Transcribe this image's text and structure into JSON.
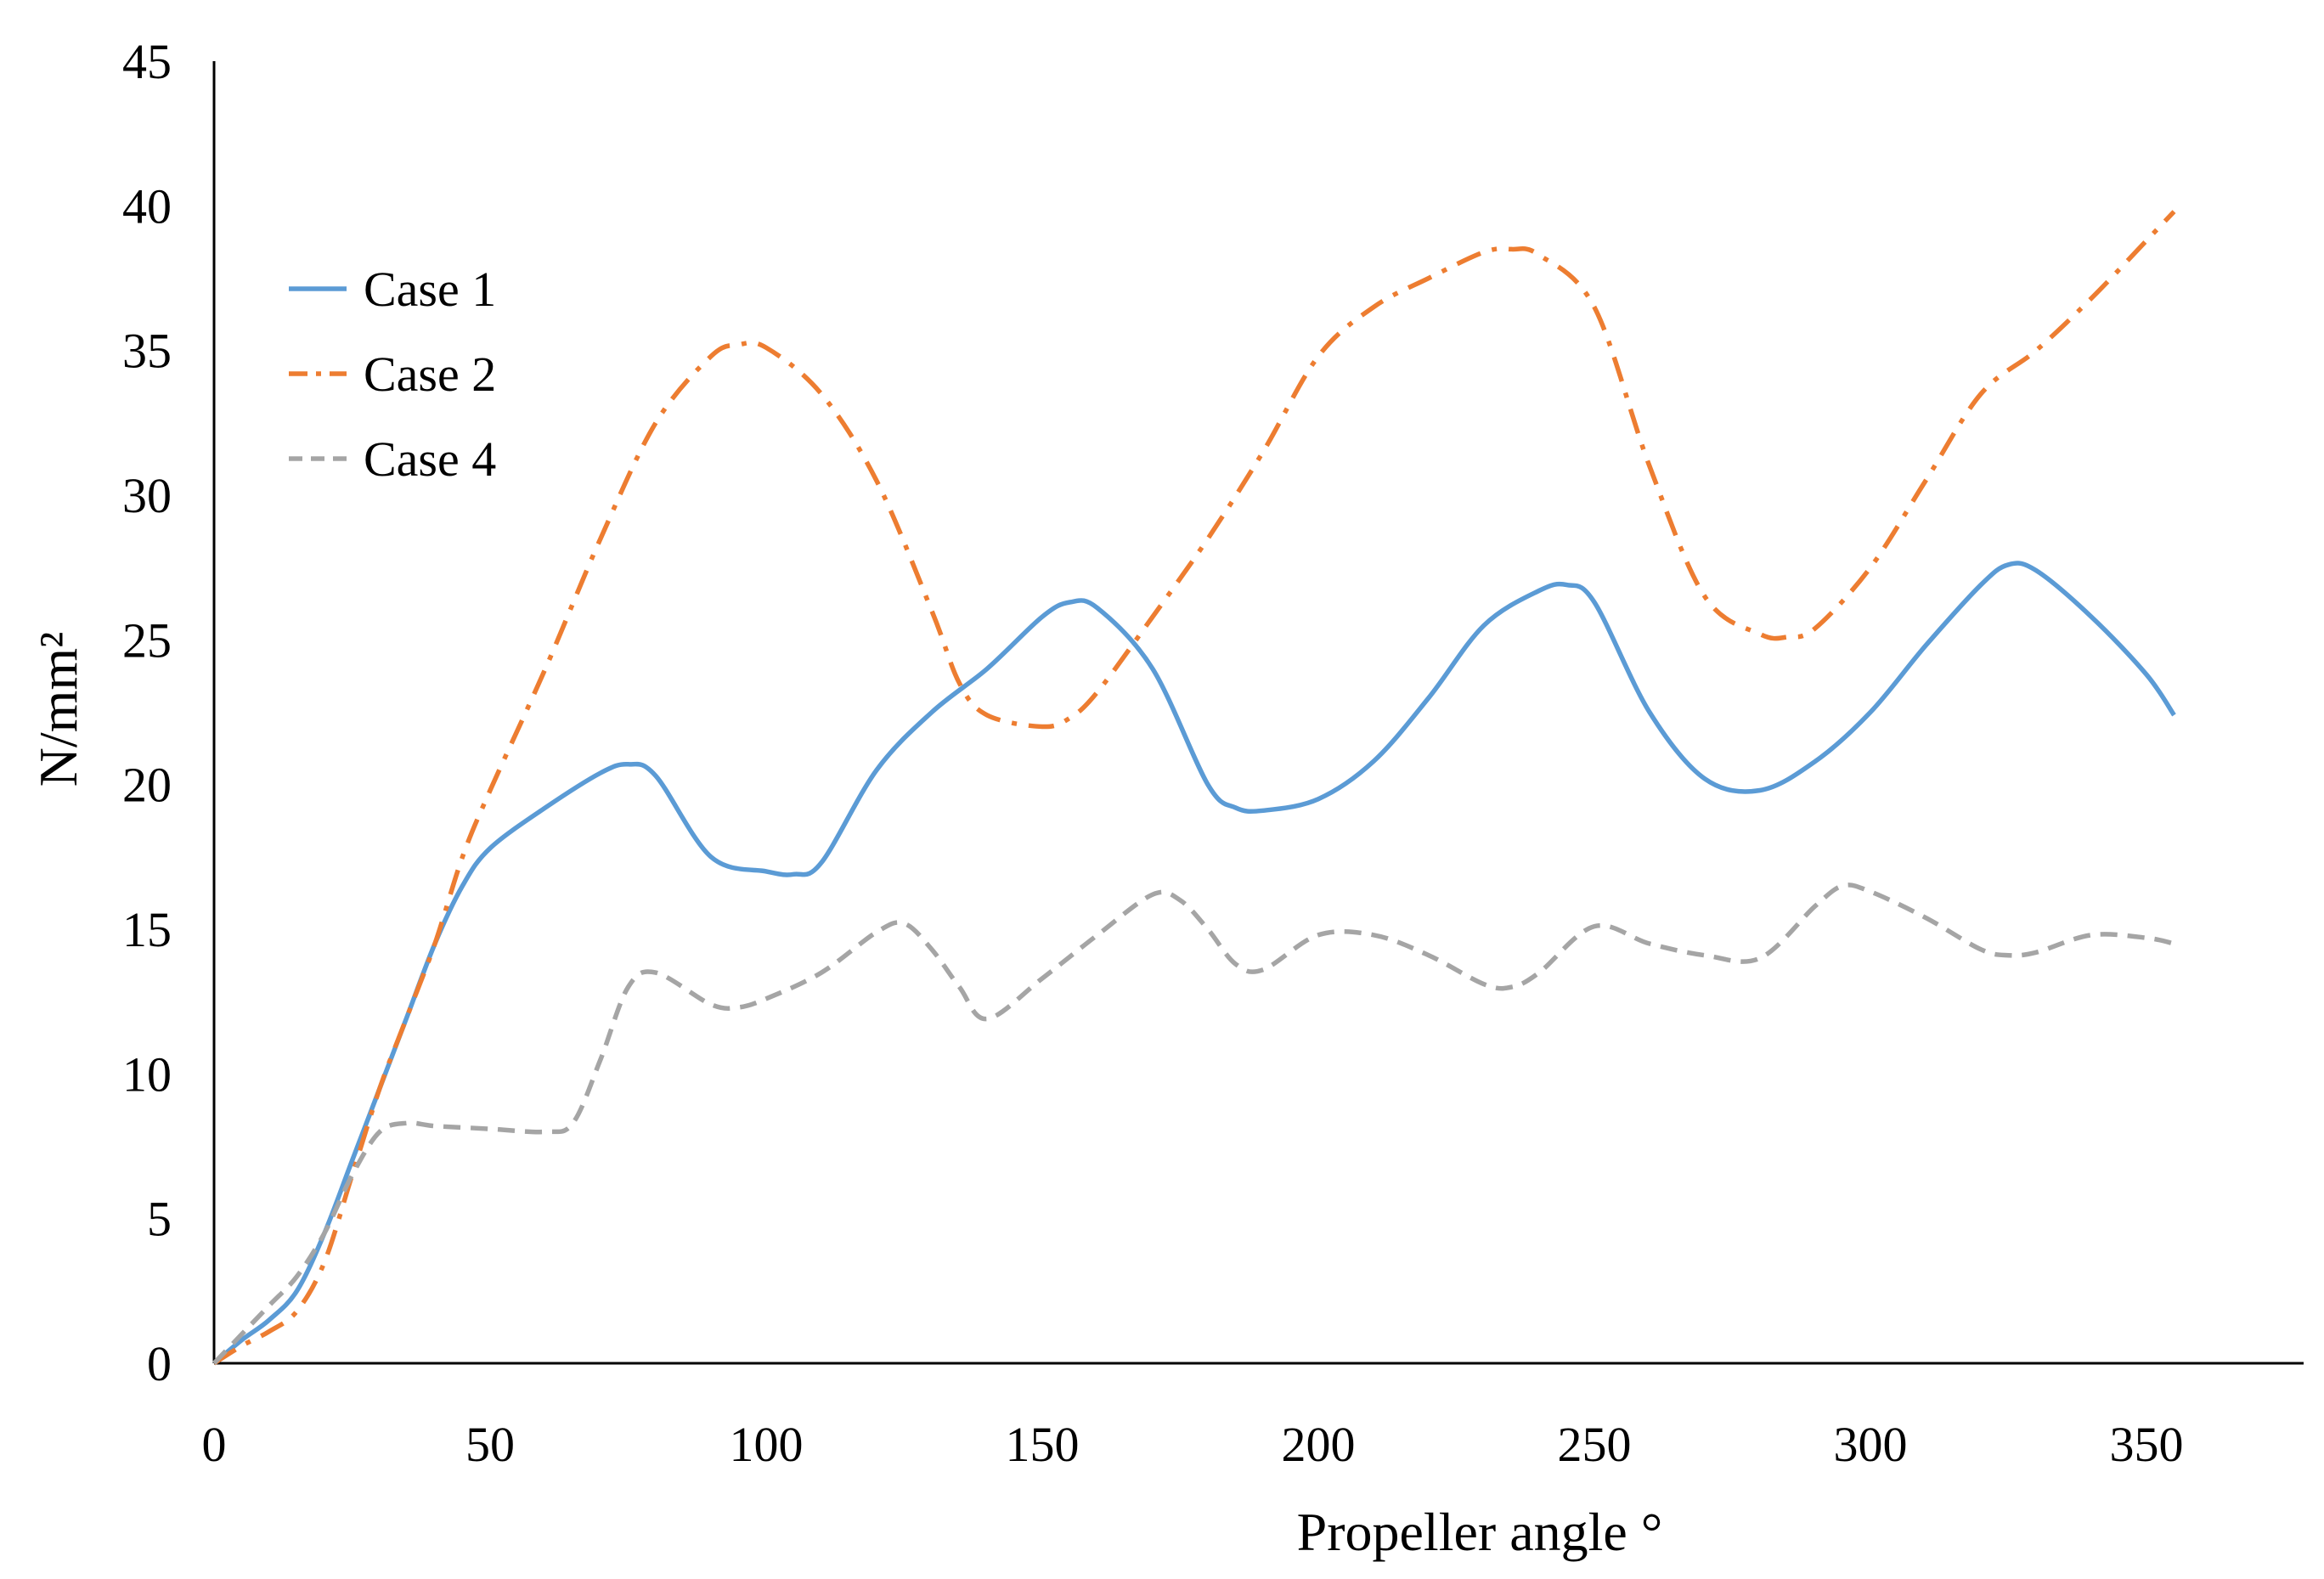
{
  "chart_data": {
    "type": "line",
    "title": "",
    "xlabel": "Propeller angle °",
    "ylabel": "N/mm²",
    "xlim": [
      0,
      380
    ],
    "ylim": [
      0,
      45
    ],
    "xticks": [
      0,
      50,
      100,
      150,
      200,
      250,
      300,
      350
    ],
    "yticks": [
      0,
      5,
      10,
      15,
      20,
      25,
      30,
      35,
      40,
      45
    ],
    "grid": false,
    "legend_position": "top-left",
    "series": [
      {
        "name": "Case 1",
        "color": "#5B9BD5",
        "dash": "solid",
        "x": [
          0,
          5,
          10,
          15,
          20,
          25,
          30,
          35,
          40,
          45,
          50,
          60,
          70,
          75,
          80,
          90,
          100,
          105,
          110,
          120,
          130,
          140,
          150,
          155,
          160,
          170,
          180,
          185,
          190,
          200,
          210,
          220,
          230,
          240,
          245,
          250,
          260,
          270,
          280,
          290,
          300,
          310,
          320,
          325,
          330,
          340,
          350,
          355
        ],
        "values": [
          0,
          0.8,
          1.5,
          2.5,
          4.5,
          7,
          9.5,
          12,
          14.5,
          16.5,
          17.8,
          19.2,
          20.4,
          20.7,
          20.3,
          17.5,
          17.0,
          16.9,
          17.3,
          20.5,
          22.5,
          24,
          25.8,
          26.3,
          26.1,
          24,
          20,
          19.2,
          19.1,
          19.5,
          20.8,
          23,
          25.5,
          26.7,
          26.9,
          26.3,
          22.5,
          20.2,
          19.8,
          20.8,
          22.5,
          24.8,
          26.9,
          27.6,
          27.4,
          25.8,
          23.8,
          22.4
        ]
      },
      {
        "name": "Case 2",
        "color": "#ED7D31",
        "dash": "dash-dot",
        "x": [
          0,
          5,
          10,
          15,
          20,
          25,
          30,
          35,
          40,
          45,
          50,
          60,
          70,
          80,
          90,
          95,
          100,
          110,
          120,
          130,
          135,
          140,
          150,
          155,
          160,
          170,
          180,
          190,
          200,
          210,
          220,
          230,
          235,
          240,
          250,
          260,
          270,
          280,
          285,
          290,
          300,
          310,
          320,
          330,
          340,
          350,
          355
        ],
        "values": [
          0,
          0.6,
          1.1,
          1.8,
          3.5,
          6.5,
          9.5,
          12,
          14.5,
          17.5,
          19.8,
          24,
          28.5,
          32.5,
          34.8,
          35.2,
          35.1,
          33.5,
          30.5,
          26,
          23.5,
          22.4,
          22,
          22.3,
          23.2,
          25.8,
          28.5,
          31.5,
          34.8,
          36.5,
          37.5,
          38.4,
          38.5,
          38.3,
          36.5,
          31,
          26.5,
          25.2,
          25.1,
          25.4,
          27.5,
          30.5,
          33.5,
          35,
          36.8,
          38.8,
          39.8
        ]
      },
      {
        "name": "Case 4",
        "color": "#A5A5A5",
        "dash": "dashed",
        "x": [
          0,
          5,
          10,
          15,
          20,
          25,
          30,
          35,
          40,
          50,
          60,
          65,
          70,
          75,
          80,
          90,
          95,
          100,
          110,
          120,
          125,
          130,
          135,
          140,
          150,
          160,
          170,
          175,
          180,
          185,
          190,
          200,
          210,
          220,
          230,
          235,
          240,
          250,
          260,
          270,
          280,
          290,
          295,
          300,
          310,
          320,
          325,
          330,
          340,
          350,
          355
        ],
        "values": [
          0,
          1,
          2,
          3,
          4.5,
          6.5,
          8,
          8.3,
          8.2,
          8.1,
          8.0,
          8.3,
          10.5,
          13,
          13.5,
          12.4,
          12.3,
          12.6,
          13.5,
          14.9,
          15.2,
          14.3,
          13,
          11.9,
          13.3,
          14.8,
          16.2,
          16.0,
          15,
          13.8,
          13.6,
          14.8,
          14.8,
          14.1,
          13.1,
          13.0,
          13.5,
          15.1,
          14.5,
          14.1,
          14.0,
          15.8,
          16.5,
          16.3,
          15.4,
          14.3,
          14.1,
          14.2,
          14.8,
          14.7,
          14.5
        ]
      }
    ]
  }
}
